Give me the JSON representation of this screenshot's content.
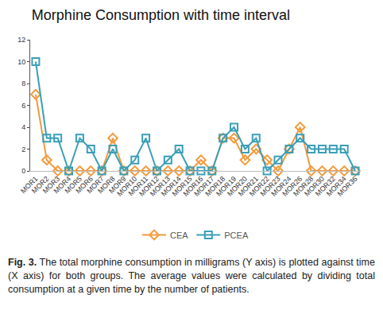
{
  "chart_data": {
    "type": "line",
    "title": "Morphine Consumption with time interval",
    "categories": [
      "MOR1",
      "MOR2",
      "MOR3",
      "MOR4",
      "MOR5",
      "MOR6",
      "MOR7",
      "MOR8",
      "MOR9",
      "MOR10",
      "MOR11",
      "MOR12",
      "MOR13",
      "MOR14",
      "MOR15",
      "MOR16",
      "MOR17",
      "MOR18",
      "MOR19",
      "MOR20",
      "MOR21",
      "MOR22",
      "MOR23",
      "MOR24",
      "MOR26",
      "MOR28",
      "MOR30",
      "MOR32",
      "MOR34",
      "MOR36"
    ],
    "series": [
      {
        "name": "CEA",
        "color": "#f39a3c",
        "marker": "diamond",
        "values": [
          7,
          1,
          0,
          0,
          0,
          0,
          0,
          3,
          0,
          0,
          0,
          0,
          0,
          0,
          0,
          1,
          0,
          3,
          3,
          1,
          2,
          1,
          0,
          2,
          4,
          0,
          0,
          0,
          0,
          0
        ]
      },
      {
        "name": "PCEA",
        "color": "#3a9fb8",
        "marker": "square",
        "values": [
          10,
          3,
          3,
          0,
          3,
          2,
          0,
          2,
          0,
          1,
          3,
          0,
          1,
          2,
          0,
          0,
          0,
          3,
          4,
          2,
          3,
          0,
          1,
          2,
          3,
          2,
          2,
          2,
          2,
          0
        ]
      }
    ],
    "ylim": [
      0,
      12
    ],
    "yticks": [
      0,
      2,
      4,
      6,
      8,
      10,
      12
    ],
    "grid": false,
    "legend": "bottom",
    "caption": {
      "label": "Fig. 3.",
      "text": "The total morphine consumption in milligrams (Y axis) is plotted against time (X axis) for both groups. The average values were calculated by dividing total consumption at a given time by the number of patients."
    }
  }
}
